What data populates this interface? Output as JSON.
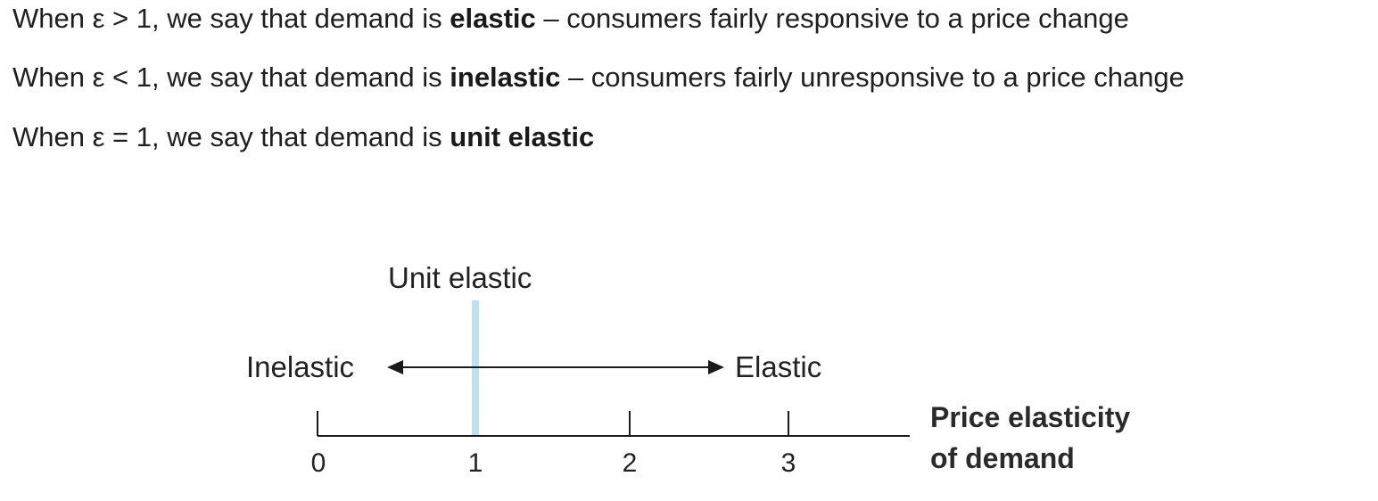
{
  "text": {
    "line1": {
      "prefix": "When ε > 1, we say that demand is ",
      "bold": "elastic",
      "suffix": " – consumers fairly responsive to a price change"
    },
    "line2": {
      "prefix": "When ε < 1, we say that demand is ",
      "bold": "inelastic",
      "suffix": " – consumers fairly unresponsive to a price change"
    },
    "line3": {
      "prefix": "When ε = 1, we say that demand is ",
      "bold": "unit elastic",
      "suffix": ""
    }
  },
  "diagram": {
    "unit_label": "Unit elastic",
    "left_label": "Inelastic",
    "right_label": "Elastic",
    "axis_title_line1": "Price elasticity",
    "axis_title_line2": "of demand",
    "ticks": [
      "0",
      "1",
      "2",
      "3"
    ],
    "unit_line_color": "#bfe0f0",
    "line_color": "#1a1a1a"
  }
}
